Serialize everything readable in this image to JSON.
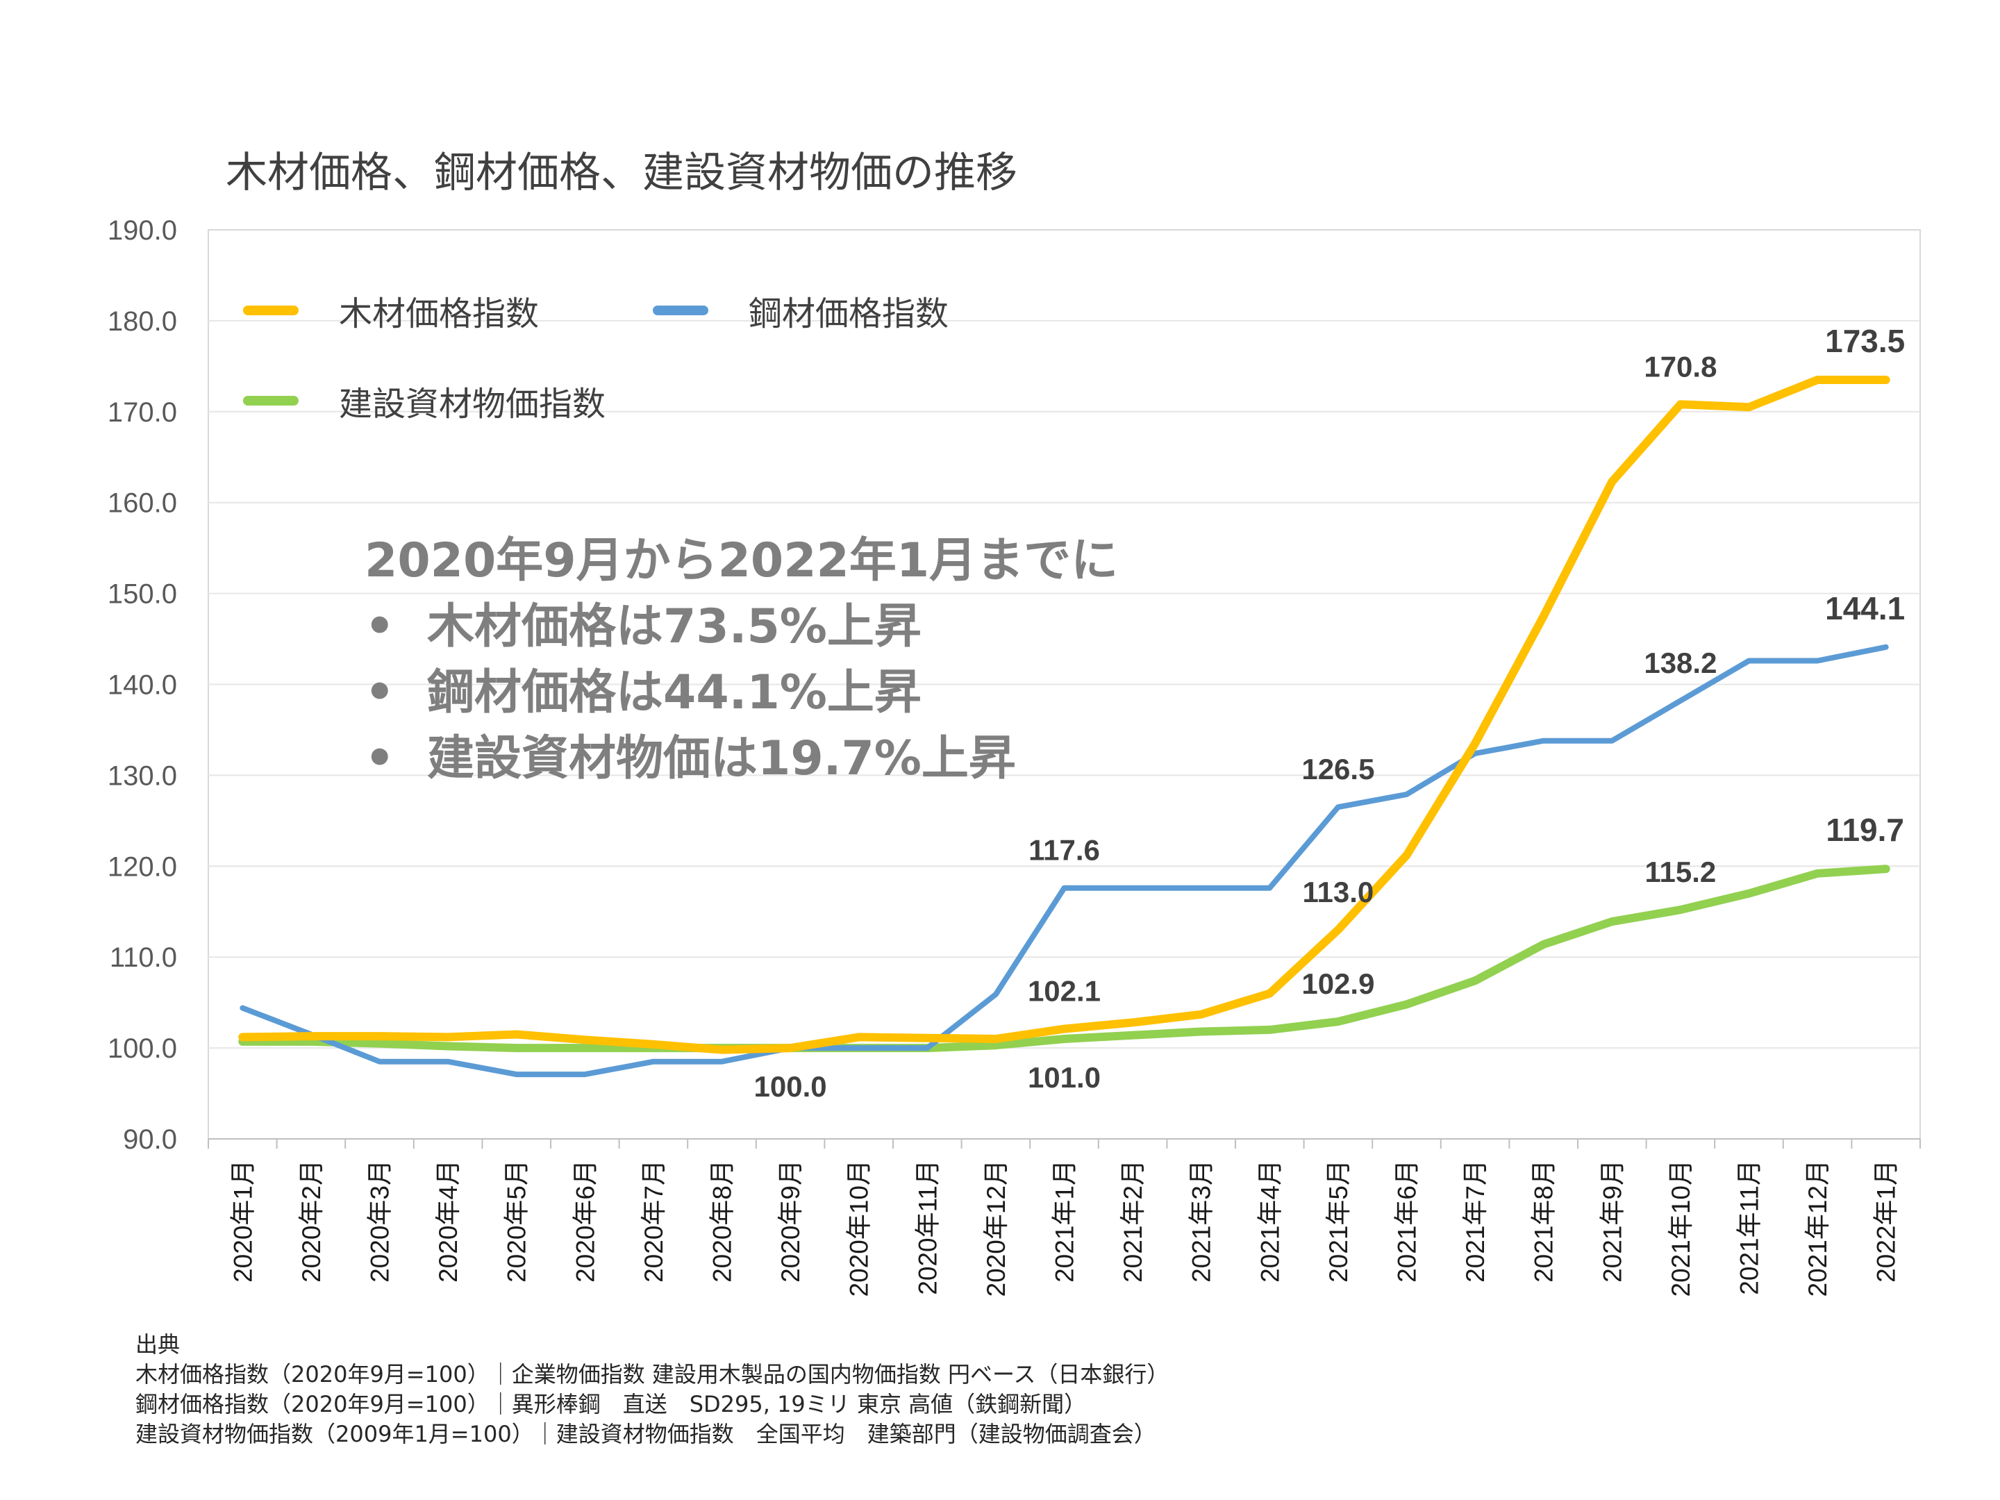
{
  "chart_data": {
    "type": "line",
    "title": "木材価格、鋼材価格、建設資材物価の推移",
    "categories": [
      "2020年1月",
      "2020年2月",
      "2020年3月",
      "2020年4月",
      "2020年5月",
      "2020年6月",
      "2020年7月",
      "2020年8月",
      "2020年9月",
      "2020年10月",
      "2020年11月",
      "2020年12月",
      "2021年1月",
      "2021年2月",
      "2021年3月",
      "2021年4月",
      "2021年5月",
      "2021年6月",
      "2021年7月",
      "2021年8月",
      "2021年9月",
      "2021年10月",
      "2021年11月",
      "2021年12月",
      "2022年1月"
    ],
    "ylim": [
      90,
      190
    ],
    "yticks": [
      "90.0",
      "100.0",
      "110.0",
      "120.0",
      "130.0",
      "140.0",
      "150.0",
      "160.0",
      "170.0",
      "180.0",
      "190.0"
    ],
    "grid": true,
    "legend_placement": "top-left",
    "series": [
      {
        "name": "木材価格指数",
        "color": "#ffc000",
        "values": [
          101.2,
          101.3,
          101.3,
          101.2,
          101.5,
          100.9,
          100.4,
          99.8,
          100.0,
          101.2,
          101.1,
          101.0,
          102.1,
          102.8,
          103.7,
          106.0,
          113.0,
          121.2,
          133.5,
          147.5,
          162.3,
          170.8,
          170.5,
          173.5,
          173.5
        ]
      },
      {
        "name": "鋼材価格指数",
        "color": "#5b9bd5",
        "values": [
          104.4,
          101.5,
          98.5,
          98.5,
          97.1,
          97.1,
          98.5,
          98.5,
          100.0,
          100.0,
          100.0,
          105.9,
          117.6,
          117.6,
          117.6,
          117.6,
          126.5,
          127.9,
          132.4,
          133.8,
          133.8,
          138.2,
          142.6,
          142.6,
          144.1
        ]
      },
      {
        "name": "建設資材物価指数",
        "color": "#92d050",
        "values": [
          100.7,
          100.7,
          100.5,
          100.2,
          100.0,
          100.0,
          100.0,
          100.0,
          100.0,
          100.0,
          100.0,
          100.3,
          101.0,
          101.4,
          101.8,
          102.0,
          102.9,
          104.8,
          107.4,
          111.4,
          113.9,
          115.2,
          117.0,
          119.2,
          119.7
        ]
      }
    ],
    "data_labels": [
      {
        "text": "100.0",
        "series": 0,
        "index": 8,
        "pos": "below"
      },
      {
        "text": "117.6",
        "series": 1,
        "index": 12,
        "pos": "above"
      },
      {
        "text": "102.1",
        "series": 0,
        "index": 12,
        "pos": "above"
      },
      {
        "text": "101.0",
        "series": 2,
        "index": 12,
        "pos": "below"
      },
      {
        "text": "126.5",
        "series": 1,
        "index": 16,
        "pos": "above"
      },
      {
        "text": "113.0",
        "series": 0,
        "index": 16,
        "pos": "above"
      },
      {
        "text": "102.9",
        "series": 2,
        "index": 16,
        "pos": "above"
      },
      {
        "text": "170.8",
        "series": 0,
        "index": 21,
        "pos": "above"
      },
      {
        "text": "138.2",
        "series": 1,
        "index": 21,
        "pos": "above"
      },
      {
        "text": "115.2",
        "series": 2,
        "index": 21,
        "pos": "above"
      },
      {
        "text": "173.5",
        "series": 0,
        "index": 24,
        "pos": "above-end"
      },
      {
        "text": "144.1",
        "series": 1,
        "index": 24,
        "pos": "above-end"
      },
      {
        "text": "119.7",
        "series": 2,
        "index": 24,
        "pos": "above-end"
      }
    ]
  },
  "annotation": {
    "line1": "2020年9月から2022年1月までに",
    "bullet": "•",
    "items": [
      "木材価格は73.5%上昇",
      "鋼材価格は44.1%上昇",
      "建設資材物価は19.7%上昇"
    ]
  },
  "source": {
    "heading": "出典",
    "lines": [
      "木材価格指数（2020年9月=100）｜企業物価指数 建設用木製品の国内物価指数 円ベース（日本銀行）",
      "鋼材価格指数（2020年9月=100）｜異形棒鋼　直送　SD295, 19ミリ 東京 高値（鉄鋼新聞）",
      "建設資材物価指数（2009年1月=100）｜建設資材物価指数　全国平均　建築部門（建設物価調査会）"
    ]
  }
}
